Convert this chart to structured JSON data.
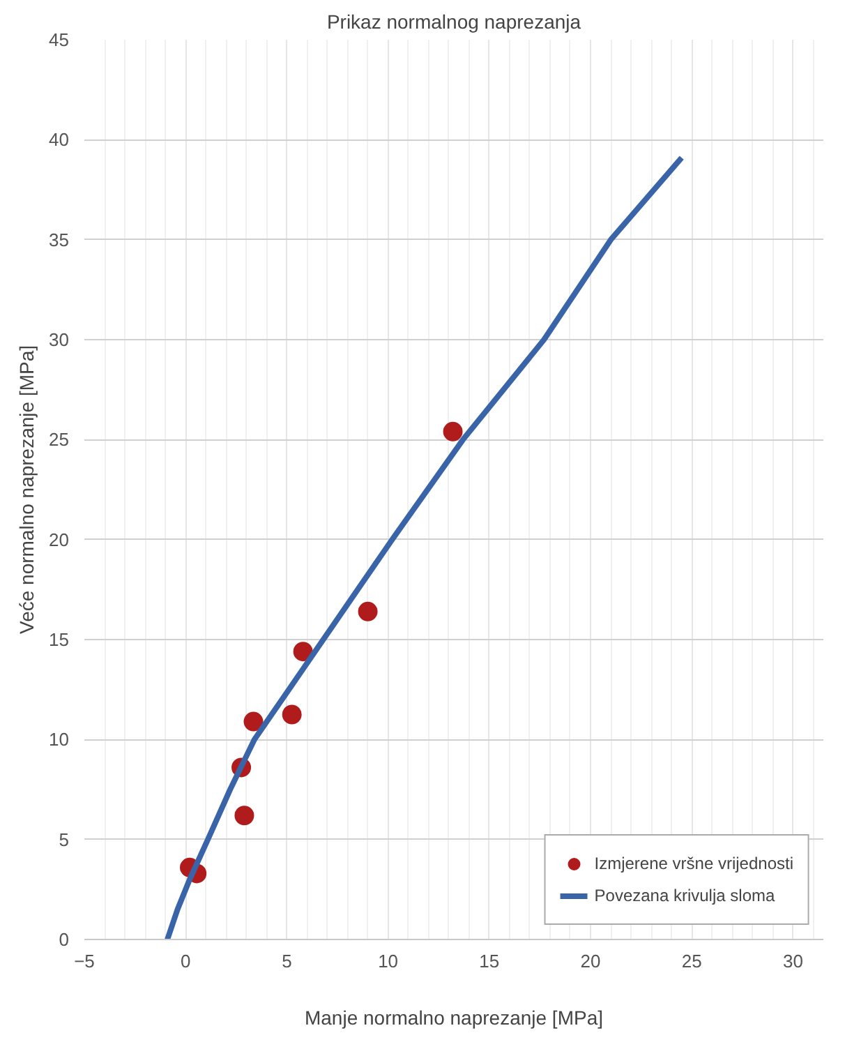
{
  "chart_data": {
    "type": "scatter",
    "title": "Prikaz normalnog naprezanja",
    "xlabel": "Manje normalno naprezanje [MPa]",
    "ylabel": "Veće normalno naprezanje [MPa]",
    "xlim": [
      -5,
      31.5
    ],
    "ylim": [
      0,
      45
    ],
    "xticks": [
      -5,
      0,
      5,
      10,
      15,
      20,
      25,
      30
    ],
    "yticks": [
      0,
      5,
      10,
      15,
      20,
      25,
      30,
      35,
      40,
      45
    ],
    "grid": true,
    "legend": "bottom right",
    "series": [
      {
        "name": "Izmjerene vršne vrijednosti",
        "marker": "circle",
        "color": "#b01c1c",
        "x": [
          0.2,
          0.55,
          2.9,
          2.75,
          3.35,
          5.25,
          5.8,
          9.0,
          13.2
        ],
        "values": [
          3.6,
          3.3,
          6.2,
          8.6,
          10.9,
          11.25,
          14.4,
          16.4,
          25.4
        ]
      },
      {
        "name": "Povezana krivulja sloma",
        "type": "line",
        "color": "#3a64a8",
        "x": [
          -0.9,
          -0.4,
          0.2,
          1.1,
          2.2,
          3.4,
          5.1,
          6.8,
          8.5,
          10.2,
          13.7,
          17.7,
          21.0,
          24.5
        ],
        "values": [
          0,
          1.5,
          3.0,
          5,
          7.5,
          10,
          12.5,
          15,
          17.5,
          20,
          25,
          30,
          35,
          39.1
        ]
      }
    ]
  }
}
